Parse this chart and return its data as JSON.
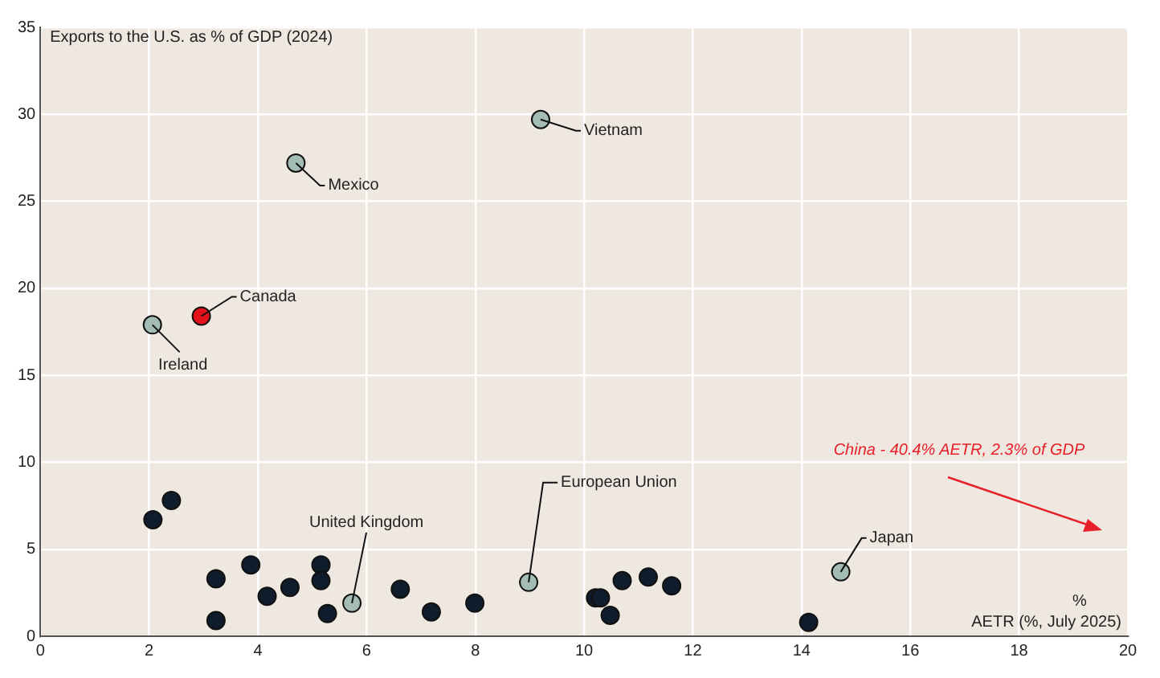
{
  "chart_data": {
    "type": "scatter",
    "xlabel": "AETR (%, July 2025)",
    "ylabel": "Exports to the U.S. as % of GDP (2024)",
    "series": [
      {
        "color": "#0f1c2b",
        "x": [
          2.07,
          2.41,
          3.23,
          3.23,
          3.87,
          4.17,
          4.59,
          5.16,
          5.16,
          5.28,
          6.62,
          7.19,
          7.99,
          10.21,
          10.3,
          10.48,
          10.7,
          11.18,
          11.61,
          14.13
        ],
        "values": [
          6.7,
          7.8,
          3.3,
          0.9,
          4.1,
          2.3,
          2.8,
          4.1,
          3.2,
          1.3,
          2.7,
          1.4,
          1.9,
          2.2,
          2.2,
          1.2,
          3.2,
          3.4,
          2.9,
          0.8
        ]
      },
      {
        "color": "#a3bcb4",
        "x": [
          9.2,
          4.7,
          2.06,
          5.73,
          8.98,
          14.72
        ],
        "values": [
          29.7,
          27.2,
          17.9,
          1.9,
          3.1,
          3.7
        ]
      },
      {
        "color": "#e3121b",
        "x": [
          2.96
        ],
        "values": [
          18.4
        ]
      }
    ],
    "xlim": [
      0,
      20
    ],
    "xticks": [
      0,
      2,
      4,
      6,
      8,
      10,
      12,
      14,
      16,
      18,
      20
    ],
    "ylim": [
      0,
      35
    ],
    "yticks": [
      0,
      5,
      10,
      15,
      20,
      25,
      30,
      35
    ],
    "grid": true,
    "legend": false,
    "marker": "circle",
    "annotations": [
      {
        "text": "Vietnam",
        "x": 9.2,
        "y": 29.7
      },
      {
        "text": "Mexico",
        "x": 4.7,
        "y": 27.2
      },
      {
        "text": "Canada",
        "x": 2.96,
        "y": 18.4
      },
      {
        "text": "Ireland",
        "x": 2.06,
        "y": 17.9
      },
      {
        "text": "United Kingdom",
        "x": 5.73,
        "y": 1.9
      },
      {
        "text": "European Union",
        "x": 8.98,
        "y": 3.1
      },
      {
        "text": "Japan",
        "x": 14.72,
        "y": 3.7
      },
      "%",
      "China - 40.4% AETR, 2.3% of GDP"
    ]
  }
}
